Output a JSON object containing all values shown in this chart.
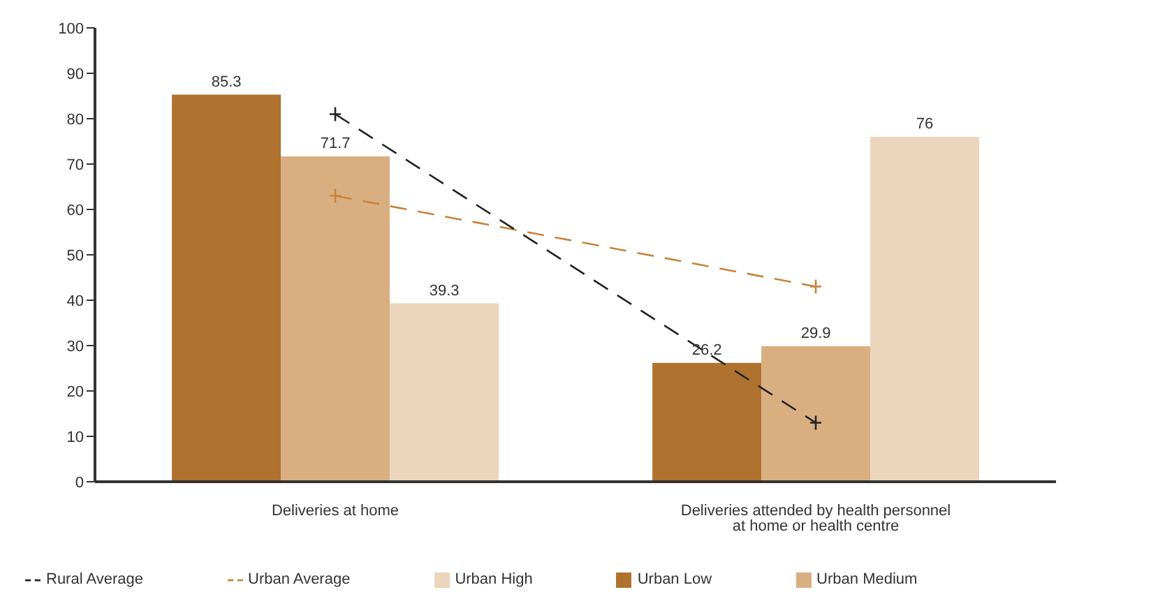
{
  "chart_data": {
    "type": "bar",
    "categories": [
      "Deliveries at home",
      "Deliveries attended by health personnel at home or health centre"
    ],
    "series": [
      {
        "name": "Urban Low",
        "color": "#b0722f",
        "values": [
          85.3,
          26.2
        ],
        "value_labels": [
          "85.3",
          "26.2"
        ]
      },
      {
        "name": "Urban Medium",
        "color": "#d9af82",
        "values": [
          71.7,
          29.9
        ],
        "value_labels": [
          "71.7",
          "29.9"
        ]
      },
      {
        "name": "Urban High",
        "color": "#ecd5bc",
        "values": [
          39.3,
          76
        ],
        "value_labels": [
          "39.3",
          "76"
        ]
      },
      {
        "name": "Urban Average",
        "type": "line",
        "color": "#c8833a",
        "values": [
          63,
          43
        ],
        "line_style": "dashed",
        "marker": "cross"
      },
      {
        "name": "Rural Average",
        "type": "line",
        "color": "#222222",
        "values": [
          81,
          13
        ],
        "line_style": "dashed",
        "marker": "cross"
      }
    ],
    "ylim": [
      0,
      100
    ],
    "yticks": [
      0,
      10,
      20,
      30,
      40,
      50,
      60,
      70,
      80,
      90,
      100
    ],
    "grid": false,
    "legend": "bottom"
  }
}
